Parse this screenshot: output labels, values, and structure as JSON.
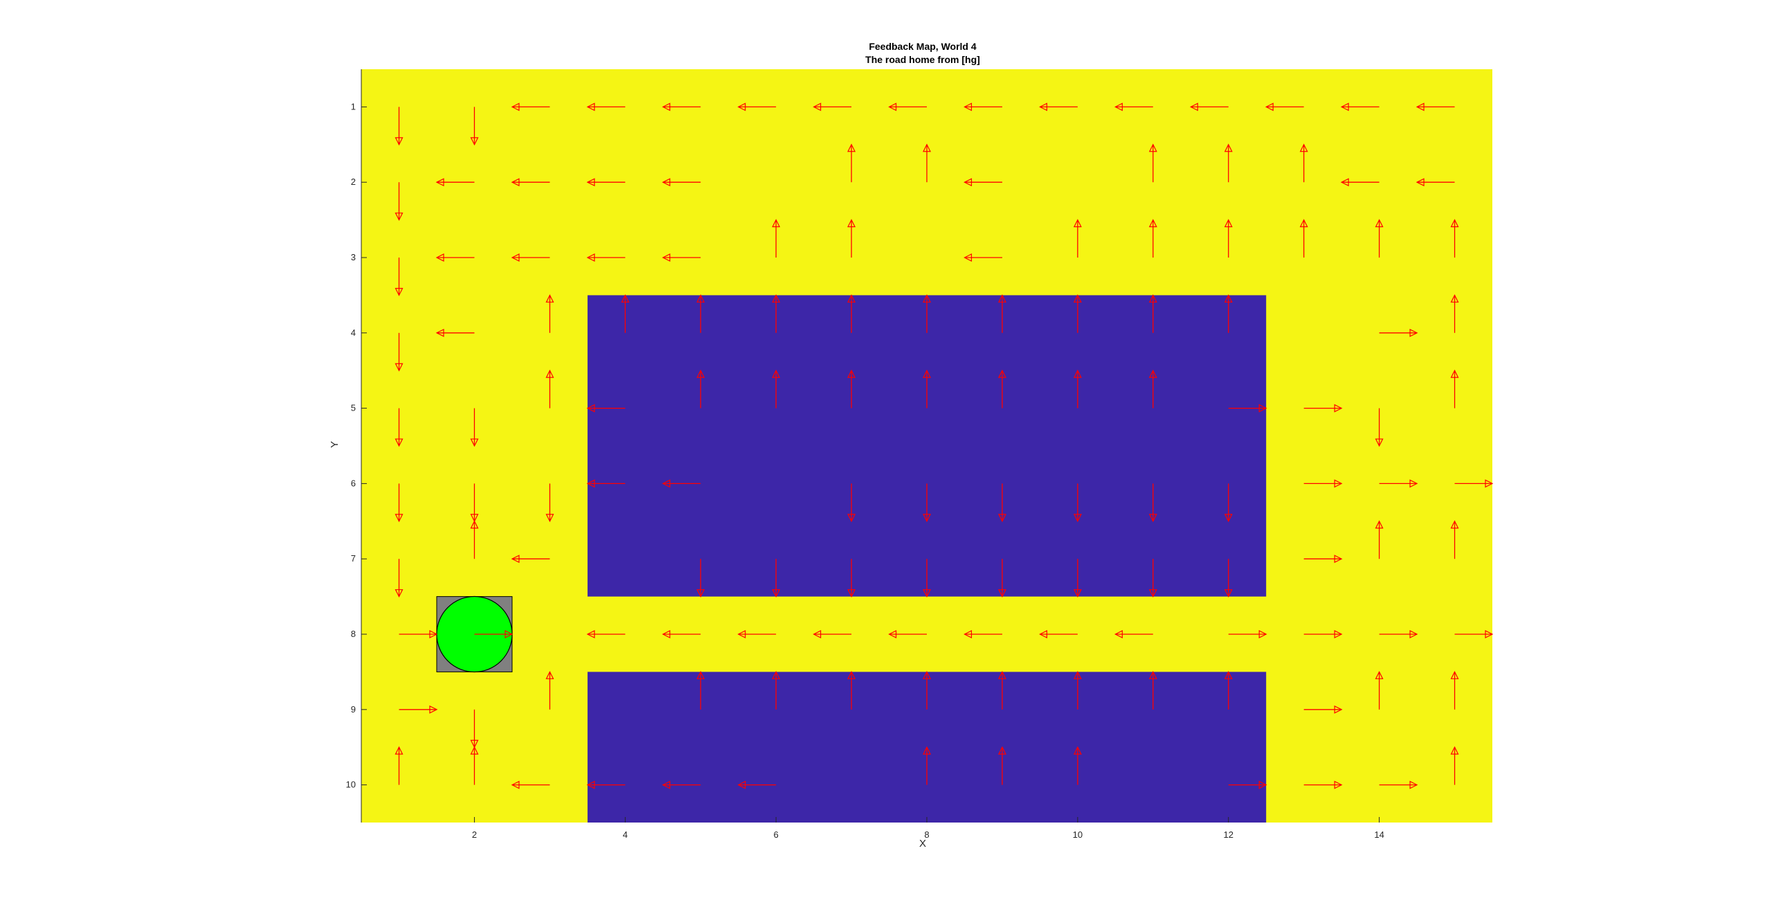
{
  "chart_data": {
    "type": "quiver",
    "title": "Feedback Map, World 4",
    "subtitle": "The road home from [hg]",
    "xlabel": "X",
    "ylabel": "Y",
    "xlim": [
      0.5,
      15.5
    ],
    "ylim": [
      0.5,
      10.5
    ],
    "y_direction": "reverse",
    "x_ticks": [
      "2",
      "4",
      "6",
      "8",
      "10",
      "12",
      "14"
    ],
    "y_ticks": [
      "1",
      "2",
      "3",
      "4",
      "5",
      "6",
      "7",
      "8",
      "9",
      "10"
    ],
    "grid": false,
    "colors": {
      "free_cell": "#f5f514",
      "obstacle": "#3d26a8",
      "arrow": "#ff0000",
      "goal_square": "#808080",
      "goal_circle": "#00ff00"
    },
    "obstacles": [
      {
        "x": [
          4,
          12
        ],
        "y": [
          4,
          7
        ]
      },
      {
        "x": [
          4,
          12
        ],
        "y": [
          9,
          10
        ]
      }
    ],
    "goal": {
      "x": 2,
      "y": 8
    },
    "direction_codes": {
      "L": "left",
      "R": "right",
      "U": "up",
      "D": "down",
      "N": "none"
    },
    "direction_rows": [
      "DDLLLLLLLLLLLLL",
      "DLLLLNUULNUUULL",
      "DLLLLUUNLUUUUUU",
      "DLUUUUUUUUUUNRU",
      "DDULUUUUUUURRDU",
      "DDDLLNDDDDDDRRR",
      "DULNDDDDDDDDRUU",
      "RRNLLLLLLLLRRRR",
      "RDUNUUUUUUUURUU",
      "UULLLLNUUUNRRRU"
    ]
  }
}
